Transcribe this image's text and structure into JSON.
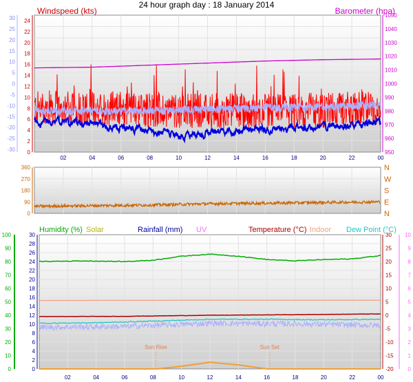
{
  "title": "24 hour graph day : 18 January 2014",
  "colors": {
    "windspeed": "#ff0000",
    "wind_avg": "#0000dd",
    "wind_light": "#aab0ff",
    "barometer": "#cc00cc",
    "direction": "#cc6600",
    "humidity": "#00aa00",
    "solar": "#b5b500",
    "rainfall": "#000099",
    "uv": "#ff66ff",
    "temperature": "#aa0000",
    "indoor": "#f4a080",
    "dewpoint": "#22c5c5",
    "panel_top": "#ffffff",
    "panel_bottom": "#cfcfcf"
  },
  "chart_data": [
    {
      "type": "line",
      "panel": "wind",
      "x_ticks": [
        "02",
        "04",
        "06",
        "08",
        "10",
        "12",
        "14",
        "16",
        "18",
        "20",
        "22",
        "00"
      ],
      "left_axis": {
        "label": "Windspeed (kts)",
        "range": [
          0,
          25
        ],
        "ticks": [
          "24",
          "22",
          "20",
          "18",
          "16",
          "14",
          "12",
          "10",
          "8",
          "6",
          "4",
          "2",
          "0"
        ]
      },
      "right_axis": {
        "label": "Barometer (hpa)",
        "range": [
          950,
          1050
        ],
        "ticks": [
          "1050",
          "1040",
          "1030",
          "1020",
          "1010",
          "1000",
          "990",
          "980",
          "970",
          "960",
          "950"
        ]
      },
      "left_outer_axis": {
        "range": [
          -30,
          30
        ],
        "ticks": [
          "30",
          "25",
          "20",
          "15",
          "10",
          "5",
          "0",
          "-5",
          "-10",
          "-15",
          "-20",
          "-25",
          "-30"
        ]
      },
      "series": [
        {
          "name": "Windspeed (kts)",
          "style": "gust",
          "x": [
            0,
            6,
            12,
            18,
            24
          ],
          "y": [
            8,
            8,
            7.5,
            7.5,
            8
          ]
        },
        {
          "name": "",
          "style": "avg",
          "x": [
            0,
            2,
            4,
            6,
            8,
            10,
            12,
            14,
            16,
            18,
            20,
            22,
            24
          ],
          "y": [
            5.5,
            5.5,
            5,
            4.5,
            4,
            3,
            3.5,
            4,
            4,
            4.5,
            4.5,
            5,
            5.5
          ]
        },
        {
          "name": "",
          "style": "light",
          "x": [
            0,
            6,
            12,
            18,
            24
          ],
          "y": [
            7.5,
            7.5,
            7.8,
            8.2,
            8.5
          ]
        },
        {
          "name": "Barometer (hpa)",
          "x": [
            0,
            4,
            8,
            12,
            16,
            20,
            24
          ],
          "y": [
            1011.5,
            1012,
            1013.5,
            1015,
            1016.5,
            1017.5,
            1018
          ]
        }
      ]
    },
    {
      "type": "line",
      "panel": "direction",
      "x_ticks": [
        "02",
        "04",
        "06",
        "08",
        "10",
        "12",
        "14",
        "16",
        "18",
        "20",
        "22",
        "00"
      ],
      "y_range": [
        0,
        360
      ],
      "y_ticks": [
        "360",
        "270",
        "180",
        "90",
        "0"
      ],
      "right_ticks": [
        "N",
        "W",
        "S",
        "E",
        "N"
      ],
      "series": [
        {
          "name": "",
          "x": [
            0,
            4,
            8,
            12,
            16,
            20,
            24
          ],
          "y": [
            55,
            60,
            65,
            75,
            80,
            85,
            90
          ]
        }
      ]
    },
    {
      "type": "line",
      "panel": "humidity",
      "x_ticks": [
        "02",
        "04",
        "06",
        "08",
        "10",
        "12",
        "14",
        "16",
        "18",
        "20",
        "22",
        "00"
      ],
      "legend": [
        "Humidity (%)",
        "Solar",
        "Rainfall (mm)",
        "UV",
        "Temperature (°C)",
        "Indoor",
        "Dew Point (°C)"
      ],
      "left_axis": {
        "range": [
          0,
          100
        ],
        "ticks": [
          "100",
          "90",
          "80",
          "70",
          "60",
          "50",
          "40",
          "30",
          "20",
          "10",
          "0"
        ]
      },
      "inner_axis": {
        "range": [
          0,
          30
        ],
        "ticks": [
          "30",
          "28",
          "26",
          "24",
          "22",
          "20",
          "18",
          "16",
          "14",
          "12",
          "10",
          "8",
          "6",
          "4",
          "2",
          "0"
        ]
      },
      "right_axis": {
        "range": [
          -20,
          30
        ],
        "ticks": [
          "30",
          "25",
          "20",
          "15",
          "10",
          "5",
          "0",
          "-5",
          "-10",
          "-15",
          "-20"
        ]
      },
      "right_outer_axis": {
        "range": [
          0,
          10
        ],
        "ticks": [
          "10",
          "9",
          "8",
          "7",
          "6",
          "5",
          "4",
          "3",
          "2",
          "1",
          "0"
        ]
      },
      "annotations": [
        {
          "label": "Sun Rise",
          "x": 8.2
        },
        {
          "label": "Sun Set",
          "x": 16.2
        }
      ],
      "series": [
        {
          "name": "Humidity (%)",
          "x": [
            0,
            3,
            6,
            8,
            10,
            12,
            14,
            16,
            18,
            20,
            22,
            24
          ],
          "y": [
            80,
            80.5,
            80,
            81,
            84,
            85.5,
            84,
            81.5,
            80.5,
            81.5,
            82,
            84.5
          ]
        },
        {
          "name": "Solar",
          "x": [
            0,
            8.3,
            10,
            12,
            14,
            16,
            24
          ],
          "y": [
            0,
            0,
            0.2,
            0.5,
            0.3,
            0,
            0
          ]
        },
        {
          "name": "Temperature (°C)",
          "x": [
            0,
            6,
            12,
            18,
            24
          ],
          "y": [
            -0.5,
            -0.4,
            0,
            0.2,
            0.5
          ]
        },
        {
          "name": "Indoor",
          "x": [
            0,
            12,
            24
          ],
          "y": [
            5.5,
            5.6,
            5.6
          ]
        },
        {
          "name": "Dew Point (°C)",
          "x": [
            0,
            4,
            8,
            12,
            16,
            20,
            24
          ],
          "y": [
            -3,
            -2.8,
            -2.2,
            -1.5,
            -1.5,
            -1.7,
            -1.5
          ]
        },
        {
          "name": "Rainfall (mm)",
          "style": "light",
          "x": [
            0,
            6,
            12,
            18,
            24
          ],
          "y": [
            -4.5,
            -4.2,
            -3,
            -3.2,
            -3.8
          ]
        }
      ]
    }
  ]
}
